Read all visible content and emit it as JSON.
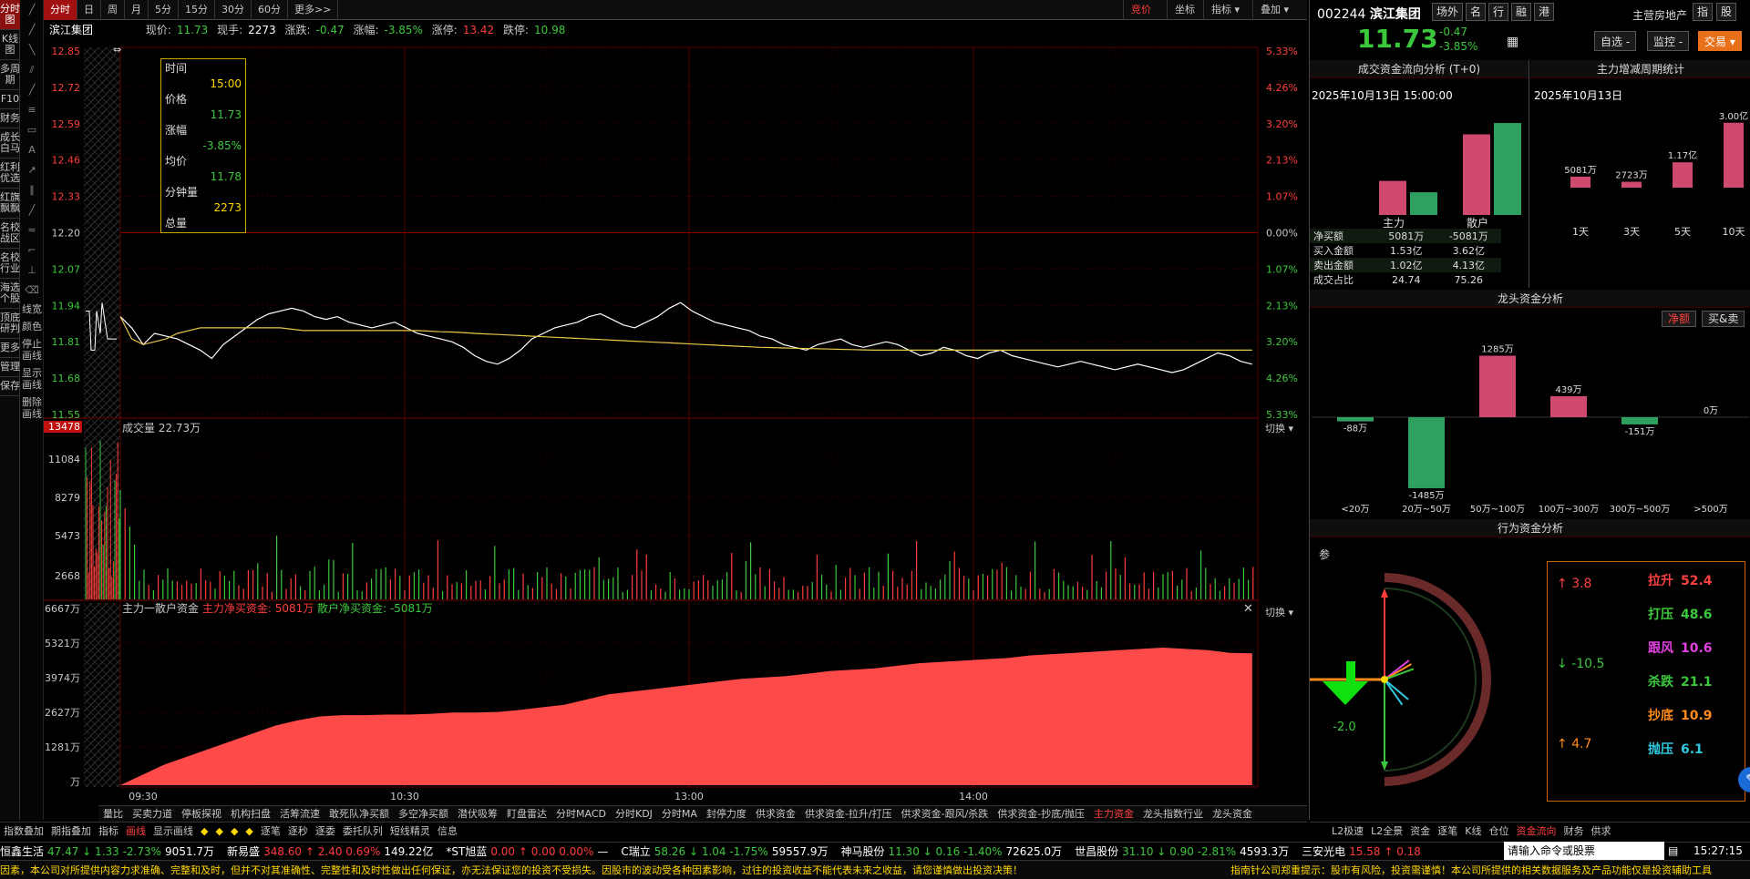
{
  "left_nav": [
    "分时图",
    "K线图",
    "多周期",
    "F10",
    "财务",
    "成长白马",
    "红利优选",
    "红旗飘飘",
    "名校战区",
    "名校行业",
    "海选个股",
    "顶底研判",
    "更多",
    "管理",
    "保存"
  ],
  "period_tabs": [
    "分时",
    "日",
    "周",
    "月",
    "5分",
    "15分",
    "30分",
    "60分",
    "更多>>"
  ],
  "active_period": "分时",
  "chart_tools": {
    "auction": "竞价",
    "coord": "坐标",
    "indicator": "指标 ▾",
    "overlay": "叠加 ▾"
  },
  "stock": {
    "name": "滨江集团",
    "code": "002244",
    "current": "11.73",
    "cur_label": "现价:",
    "vol_label": "现手:",
    "volume_hand": "2273",
    "change_label": "涨跌:",
    "change": "-0.47",
    "pct_label": "涨幅:",
    "change_pct": "-3.85%",
    "limit_up_label": "涨停:",
    "limit_up": "13.42",
    "limit_down_label": "跌停:",
    "limit_down": "10.98",
    "sector": "主营房地产"
  },
  "price_axis_left": [
    "12.85",
    "12.72",
    "12.59",
    "12.46",
    "12.33",
    "12.20",
    "12.07",
    "11.94",
    "11.81",
    "11.68",
    "11.55"
  ],
  "price_axis_right": [
    "5.33%",
    "4.26%",
    "3.20%",
    "2.13%",
    "1.07%",
    "0.00%",
    "1.07%",
    "2.13%",
    "3.20%",
    "4.26%",
    "5.33%"
  ],
  "tooltip": {
    "time_label": "时间",
    "time": "15:00",
    "price_label": "价格",
    "price": "11.73",
    "pct_label": "涨幅",
    "pct": "-3.85%",
    "avg_label": "均价",
    "avg": "11.78",
    "minvol_label": "分钟量",
    "minvol": "2273",
    "total_label": "总量"
  },
  "volume_panel": {
    "title": "成交量",
    "value": "22.73万",
    "axis": [
      "13478",
      "11084",
      "8279",
      "5473",
      "2668"
    ],
    "switch": "切换 ▾"
  },
  "fund_panel": {
    "title": "主力一散户资金",
    "main_label": "主力净买资金:",
    "main_value": "5081万",
    "retail_label": "散户净买资金:",
    "retail_value": "-5081万",
    "axis": [
      "6667万",
      "5321万",
      "3974万",
      "2627万",
      "1281万",
      "万"
    ],
    "switch": "切换 ▾"
  },
  "time_axis": [
    "09:30",
    "10:30",
    "13:00",
    "14:00"
  ],
  "indicator_tabs": [
    "量比",
    "买卖力道",
    "停板探视",
    "机构扫盘",
    "活筹流速",
    "敢死队净买额",
    "多空净买额",
    "潜伏吸筹",
    "盯盘雷达",
    "分时MACD",
    "分时KDJ",
    "分时MA",
    "封停力度",
    "供求资金",
    "供求资金-拉升/打压",
    "供求资金-跟风/杀跌",
    "供求资金-抄底/抛压",
    "主力资金",
    "龙头指数行业",
    "龙头资金"
  ],
  "active_indicator": "主力资金",
  "tool_row": [
    "指数叠加",
    "期指叠加",
    "指标",
    "画线",
    "显示画线",
    "◆",
    "◆",
    "◆",
    "◆",
    "逐笔",
    "逐秒",
    "逐委",
    "委托队列",
    "短线精灵",
    "信息"
  ],
  "right_tabs": {
    "a": "场外",
    "b": "名",
    "c": "行",
    "d": "融",
    "e": "港",
    "f": "指",
    "g": "股"
  },
  "right_buttons": {
    "self": "自选 -",
    "monitor": "监控 -",
    "trade": "交易 ▾"
  },
  "flow_analysis": {
    "title": "成交资金流向分析 (T+0)",
    "date": "2025年10月13日 15:00:00",
    "cat_main": "主力",
    "cat_retail": "散户",
    "rows": [
      {
        "label": "净买额",
        "main": "5081万",
        "retail": "-5081万"
      },
      {
        "label": "买入金额",
        "main": "1.53亿",
        "retail": "3.62亿"
      },
      {
        "label": "卖出金额",
        "main": "1.02亿",
        "retail": "4.13亿"
      },
      {
        "label": "成交占比",
        "main": "24.74",
        "retail": "75.26"
      }
    ],
    "bars": {
      "main_buy": 1.53,
      "main_sell": 1.02,
      "retail_buy": 3.62,
      "retail_sell": 4.13
    }
  },
  "period_stat": {
    "title": "主力增减周期统计",
    "date": "2025年10月13日",
    "labels": [
      "1天",
      "3天",
      "5天",
      "10天"
    ],
    "values": [
      "5081万",
      "2723万",
      "1.17亿",
      "3.00亿"
    ],
    "amounts": [
      0.5081,
      0.2723,
      1.17,
      3.0
    ]
  },
  "leader_fund": {
    "title": "龙头资金分析",
    "tab_net": "净额",
    "tab_bs": "买&卖",
    "categories": [
      "<20万",
      "20万~50万",
      "50万~100万",
      "100万~300万",
      "300万~500万",
      ">500万"
    ],
    "values": [
      "-88万",
      "-1485万",
      "1285万",
      "439万",
      "-151万",
      "0万"
    ],
    "amounts": [
      -88,
      -1485,
      1285,
      439,
      -151,
      0
    ]
  },
  "behavior": {
    "title": "行为资金分析",
    "ref": "参",
    "left_top": "3.8",
    "left_mid": "-10.5",
    "left_bot": "4.7",
    "arrow_value": "-2.0",
    "items": [
      {
        "label": "拉升",
        "value": "52.4",
        "color": "#ff4040"
      },
      {
        "label": "打压",
        "value": "48.6",
        "color": "#3cc83c"
      },
      {
        "label": "跟风",
        "value": "10.6",
        "color": "#e040e0"
      },
      {
        "label": "杀跌",
        "value": "21.1",
        "color": "#3cc83c"
      },
      {
        "label": "抄底",
        "value": "10.9",
        "color": "#ff8c1a"
      },
      {
        "label": "抛压",
        "value": "6.1",
        "color": "#30c8e0"
      }
    ]
  },
  "right_bottom_tabs": [
    "L2极速",
    "L2全景",
    "资金",
    "逐笔",
    "K线",
    "仓位",
    "资金流向",
    "财务",
    "供求"
  ],
  "right_bottom_active": "资金流向",
  "clock": "15:27:15",
  "ticker": [
    {
      "name": "恒鑫生活",
      "text": "47.47 ↓ 1.33 -2.73%",
      "extra": "9051.7万",
      "dir": "down"
    },
    {
      "name": "新易盛",
      "text": "348.60 ↑ 2.40 0.69%",
      "extra": "149.22亿",
      "dir": "up"
    },
    {
      "name": "*ST旭蓝",
      "text": "0.00 ↑ 0.00 0.00%",
      "extra": "—",
      "dir": "up"
    },
    {
      "name": "C瑞立",
      "text": "58.26 ↓ 1.04 -1.75%",
      "extra": "59557.9万",
      "dir": "down"
    },
    {
      "name": "神马股份",
      "text": "11.30 ↓ 0.16 -1.40%",
      "extra": "72625.0万",
      "dir": "down"
    },
    {
      "name": "世昌股份",
      "text": "31.10 ↓ 0.90 -2.81%",
      "extra": "4593.3万",
      "dir": "down"
    },
    {
      "name": "三安光电",
      "text": "15.58 ↑ 0.18",
      "extra": "",
      "dir": "up"
    }
  ],
  "search_placeholder": "请输入命令或股票",
  "disclaimer": "因素，本公司对所提供内容力求准确、完整和及时，但并不对其准确性、完整性和及时性做出任何保证，亦无法保证您的投资不受损失。因股市的波动受各种因素影响，过往的投资收益不能代表未来之收益，请您谨慎做出投资决策！",
  "disclaimer_right": "指南针公司郑重提示：股市有风险，投资需谨慎！本公司所提供的相关数据服务及产品功能仅是投资辅助工具",
  "intraday": {
    "prev_close": 12.2,
    "price": [
      11.9,
      11.86,
      11.8,
      11.84,
      11.83,
      11.82,
      11.8,
      11.78,
      11.75,
      11.8,
      11.83,
      11.86,
      11.89,
      11.91,
      11.92,
      11.93,
      11.92,
      11.9,
      11.89,
      11.9,
      11.88,
      11.87,
      11.86,
      11.87,
      11.88,
      11.86,
      11.84,
      11.83,
      11.82,
      11.81,
      11.79,
      11.76,
      11.74,
      11.73,
      11.75,
      11.78,
      11.82,
      11.84,
      11.86,
      11.87,
      11.88,
      11.9,
      11.91,
      11.89,
      11.87,
      11.86,
      11.88,
      11.9,
      11.93,
      11.95,
      11.92,
      11.9,
      11.88,
      11.87,
      11.86,
      11.85,
      11.83,
      11.82,
      11.8,
      11.79,
      11.78,
      11.8,
      11.81,
      11.82,
      11.8,
      11.79,
      11.8,
      11.81,
      11.8,
      11.78,
      11.76,
      11.77,
      11.79,
      11.78,
      11.76,
      11.75,
      11.77,
      11.78,
      11.76,
      11.75,
      11.74,
      11.73,
      11.72,
      11.73,
      11.74,
      11.73,
      11.72,
      11.71,
      11.72,
      11.73,
      11.72,
      11.71,
      11.7,
      11.71,
      11.73,
      11.75,
      11.77,
      11.76,
      11.74,
      11.73
    ],
    "avg": [
      11.9,
      11.82,
      11.8,
      11.81,
      11.82,
      11.84,
      11.85,
      11.86,
      11.86,
      11.86,
      11.86,
      11.86,
      11.86,
      11.86,
      11.86,
      11.855,
      11.85,
      11.85,
      11.85,
      11.85,
      11.85,
      11.85,
      11.85,
      11.85,
      11.85,
      11.85,
      11.85,
      11.848,
      11.846,
      11.845,
      11.843,
      11.84,
      11.838,
      11.836,
      11.834,
      11.832,
      11.83,
      11.828,
      11.826,
      11.824,
      11.822,
      11.82,
      11.818,
      11.816,
      11.814,
      11.812,
      11.81,
      11.808,
      11.806,
      11.804,
      11.802,
      11.8,
      11.798,
      11.796,
      11.794,
      11.792,
      11.79,
      11.789,
      11.788,
      11.787,
      11.786,
      11.785,
      11.784,
      11.783,
      11.782,
      11.781,
      11.78,
      11.78,
      11.78,
      11.78,
      11.78,
      11.78,
      11.78,
      11.78,
      11.78,
      11.78,
      11.78,
      11.78,
      11.78,
      11.78,
      11.78,
      11.78,
      11.78,
      11.78,
      11.78,
      11.78,
      11.78,
      11.78,
      11.78,
      11.78,
      11.78,
      11.78,
      11.78,
      11.78,
      11.78,
      11.78,
      11.78,
      11.78,
      11.78,
      11.78
    ],
    "fund": [
      0,
      400,
      800,
      1100,
      1400,
      1700,
      2000,
      2300,
      2500,
      2650,
      2700,
      2700,
      2720,
      2720,
      2750,
      2800,
      2800,
      2820,
      2900,
      3000,
      3100,
      3300,
      3500,
      3600,
      3700,
      3800,
      3900,
      4000,
      4100,
      4150,
      4200,
      4300,
      4400,
      4450,
      4500,
      4600,
      4700,
      4750,
      4800,
      4850,
      4900,
      5000,
      5050,
      5100,
      5150,
      5200,
      5250,
      5300,
      5250,
      5200,
      5100,
      5081
    ]
  }
}
